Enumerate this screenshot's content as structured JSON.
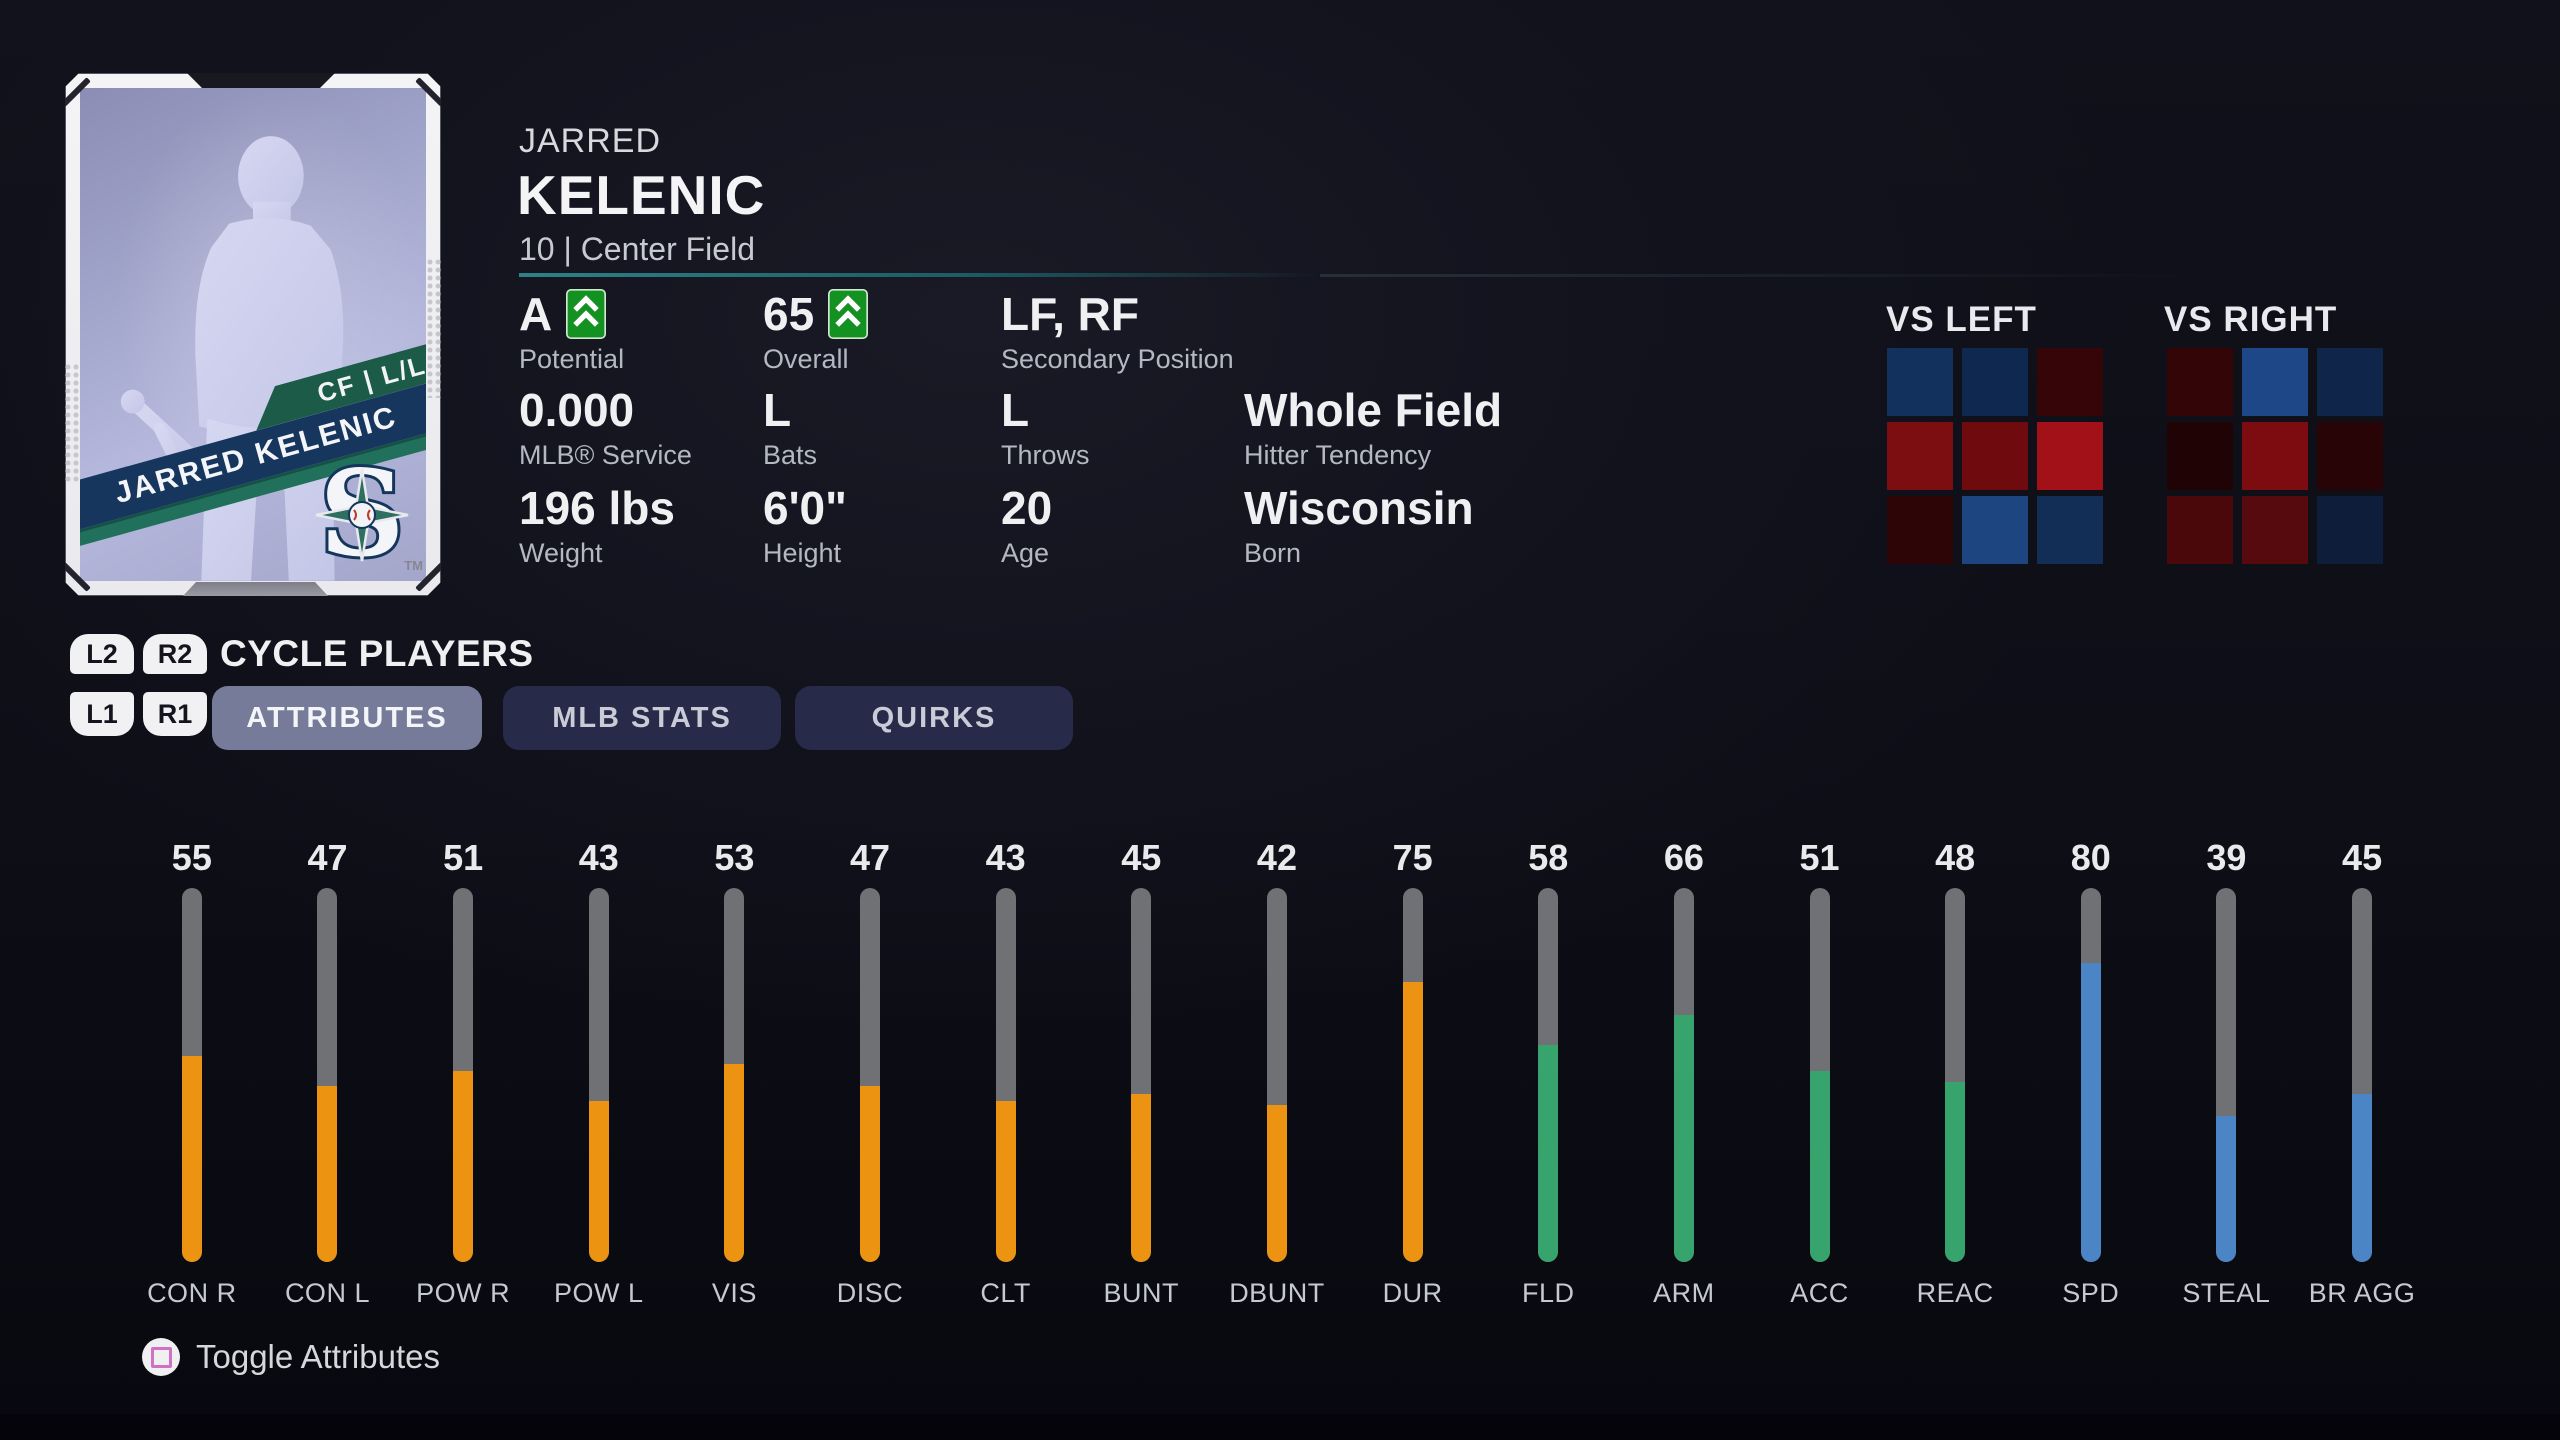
{
  "header": {
    "first_name": "JARRED",
    "last_name": "KELENIC",
    "jersey_position": "10 | Center Field"
  },
  "card": {
    "position_handedness": "CF | L/L",
    "name_banner": "JARRED KELENIC",
    "team_logo_letter": "S",
    "trademark": "TM"
  },
  "summary": {
    "rows": [
      [
        {
          "value": "A",
          "label": "Potential",
          "boost": true
        },
        {
          "value": "65",
          "label": "Overall",
          "boost": true
        },
        {
          "value": "LF, RF",
          "label": "Secondary Position",
          "boost": false
        }
      ],
      [
        {
          "value": "0.000",
          "label": "MLB® Service",
          "boost": false
        },
        {
          "value": "L",
          "label": "Bats",
          "boost": false
        },
        {
          "value": "L",
          "label": "Throws",
          "boost": false
        },
        {
          "value": "Whole Field",
          "label": "Hitter Tendency",
          "boost": false
        }
      ],
      [
        {
          "value": "196 lbs",
          "label": "Weight",
          "boost": false
        },
        {
          "value": "6'0\"",
          "label": "Height",
          "boost": false
        },
        {
          "value": "20",
          "label": "Age",
          "boost": false
        },
        {
          "value": "Wisconsin",
          "label": "Born",
          "boost": false
        }
      ]
    ],
    "boost_color": "#149221"
  },
  "heatmaps": {
    "vs_left": {
      "title": "VS LEFT",
      "cells": [
        "#12315c",
        "#0e2850",
        "#360508",
        "#7c0d10",
        "#6f0b0e",
        "#a31118",
        "#2d0506",
        "#1d4580",
        "#122d56"
      ]
    },
    "vs_right": {
      "title": "VS RIGHT",
      "cells": [
        "#330507",
        "#1d4786",
        "#0f254a",
        "#1f0305",
        "#7d0c10",
        "#290406",
        "#4b080b",
        "#570a0d",
        "#0e1d39"
      ]
    }
  },
  "controls": {
    "cycle_label": "CYCLE PLAYERS",
    "buttons": {
      "l2": "L2",
      "r2": "R2",
      "l1": "L1",
      "r1": "R1"
    },
    "tabs": [
      {
        "label": "ATTRIBUTES",
        "active": true
      },
      {
        "label": "MLB STATS",
        "active": false
      },
      {
        "label": "QUIRKS",
        "active": false
      }
    ]
  },
  "attributes": {
    "bars": [
      {
        "label": "CON R",
        "value": 55,
        "color": "orange"
      },
      {
        "label": "CON L",
        "value": 47,
        "color": "orange"
      },
      {
        "label": "POW R",
        "value": 51,
        "color": "orange"
      },
      {
        "label": "POW L",
        "value": 43,
        "color": "orange"
      },
      {
        "label": "VIS",
        "value": 53,
        "color": "orange"
      },
      {
        "label": "DISC",
        "value": 47,
        "color": "orange"
      },
      {
        "label": "CLT",
        "value": 43,
        "color": "orange"
      },
      {
        "label": "BUNT",
        "value": 45,
        "color": "orange"
      },
      {
        "label": "DBUNT",
        "value": 42,
        "color": "orange"
      },
      {
        "label": "DUR",
        "value": 75,
        "color": "orange"
      },
      {
        "label": "FLD",
        "value": 58,
        "color": "green"
      },
      {
        "label": "ARM",
        "value": 66,
        "color": "green"
      },
      {
        "label": "ACC",
        "value": 51,
        "color": "green"
      },
      {
        "label": "REAC",
        "value": 48,
        "color": "green"
      },
      {
        "label": "SPD",
        "value": 80,
        "color": "blue"
      },
      {
        "label": "STEAL",
        "value": 39,
        "color": "blue"
      },
      {
        "label": "BR AGG",
        "value": 45,
        "color": "blue"
      }
    ],
    "palette": {
      "orange": "#ec9312",
      "green": "#36a46c",
      "blue": "#4b85c5",
      "track": "#6f7175"
    }
  },
  "footer": {
    "toggle_label": "Toggle Attributes"
  }
}
